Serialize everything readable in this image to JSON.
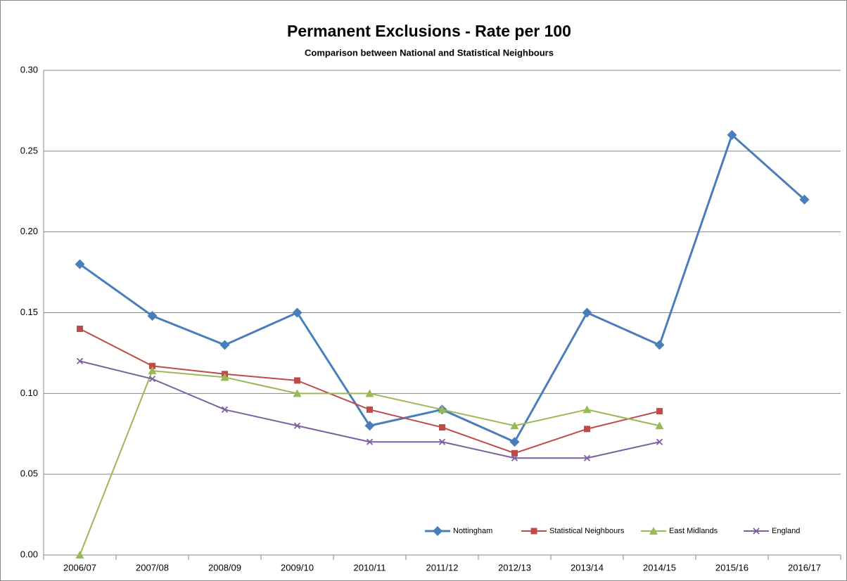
{
  "chart_data": {
    "type": "line",
    "title": "Permanent Exclusions - Rate per 100",
    "subtitle": "Comparison between National and Statistical Neighbours",
    "categories": [
      "2006/07",
      "2007/08",
      "2008/09",
      "2009/10",
      "2010/11",
      "2011/12",
      "2012/13",
      "2013/14",
      "2014/15",
      "2015/16",
      "2016/17"
    ],
    "series": [
      {
        "name": "Nottingham",
        "color": "#4a7ebb",
        "marker": "diamond",
        "values": [
          0.18,
          0.148,
          0.13,
          0.15,
          0.08,
          0.09,
          0.07,
          0.15,
          0.13,
          0.26,
          0.22
        ]
      },
      {
        "name": "Statistical Neighbours",
        "color": "#be4b48",
        "marker": "square",
        "values": [
          0.14,
          0.117,
          0.112,
          0.108,
          0.09,
          0.079,
          0.063,
          0.078,
          0.089,
          null,
          null
        ]
      },
      {
        "name": "East Midlands",
        "color": "#98b954",
        "marker": "triangle",
        "values": [
          0,
          0.114,
          0.11,
          0.1,
          0.1,
          0.09,
          0.08,
          0.09,
          0.08,
          null,
          null
        ]
      },
      {
        "name": "England",
        "color": "#7d60a0",
        "marker": "x",
        "values": [
          0.12,
          0.109,
          0.09,
          0.08,
          0.07,
          0.07,
          0.06,
          0.06,
          0.07,
          null,
          null
        ]
      }
    ],
    "ylim": [
      0,
      0.3
    ],
    "yticks": [
      {
        "value": 0,
        "label": "0.00"
      },
      {
        "value": 0.05,
        "label": "0.05"
      },
      {
        "value": 0.1,
        "label": "0.10"
      },
      {
        "value": 0.15,
        "label": "0.15"
      },
      {
        "value": 0.2,
        "label": "0.20"
      },
      {
        "value": 0.25,
        "label": "0.25"
      },
      {
        "value": 0.3,
        "label": "0.30"
      }
    ],
    "grid": true,
    "legend": "bottom-right"
  }
}
